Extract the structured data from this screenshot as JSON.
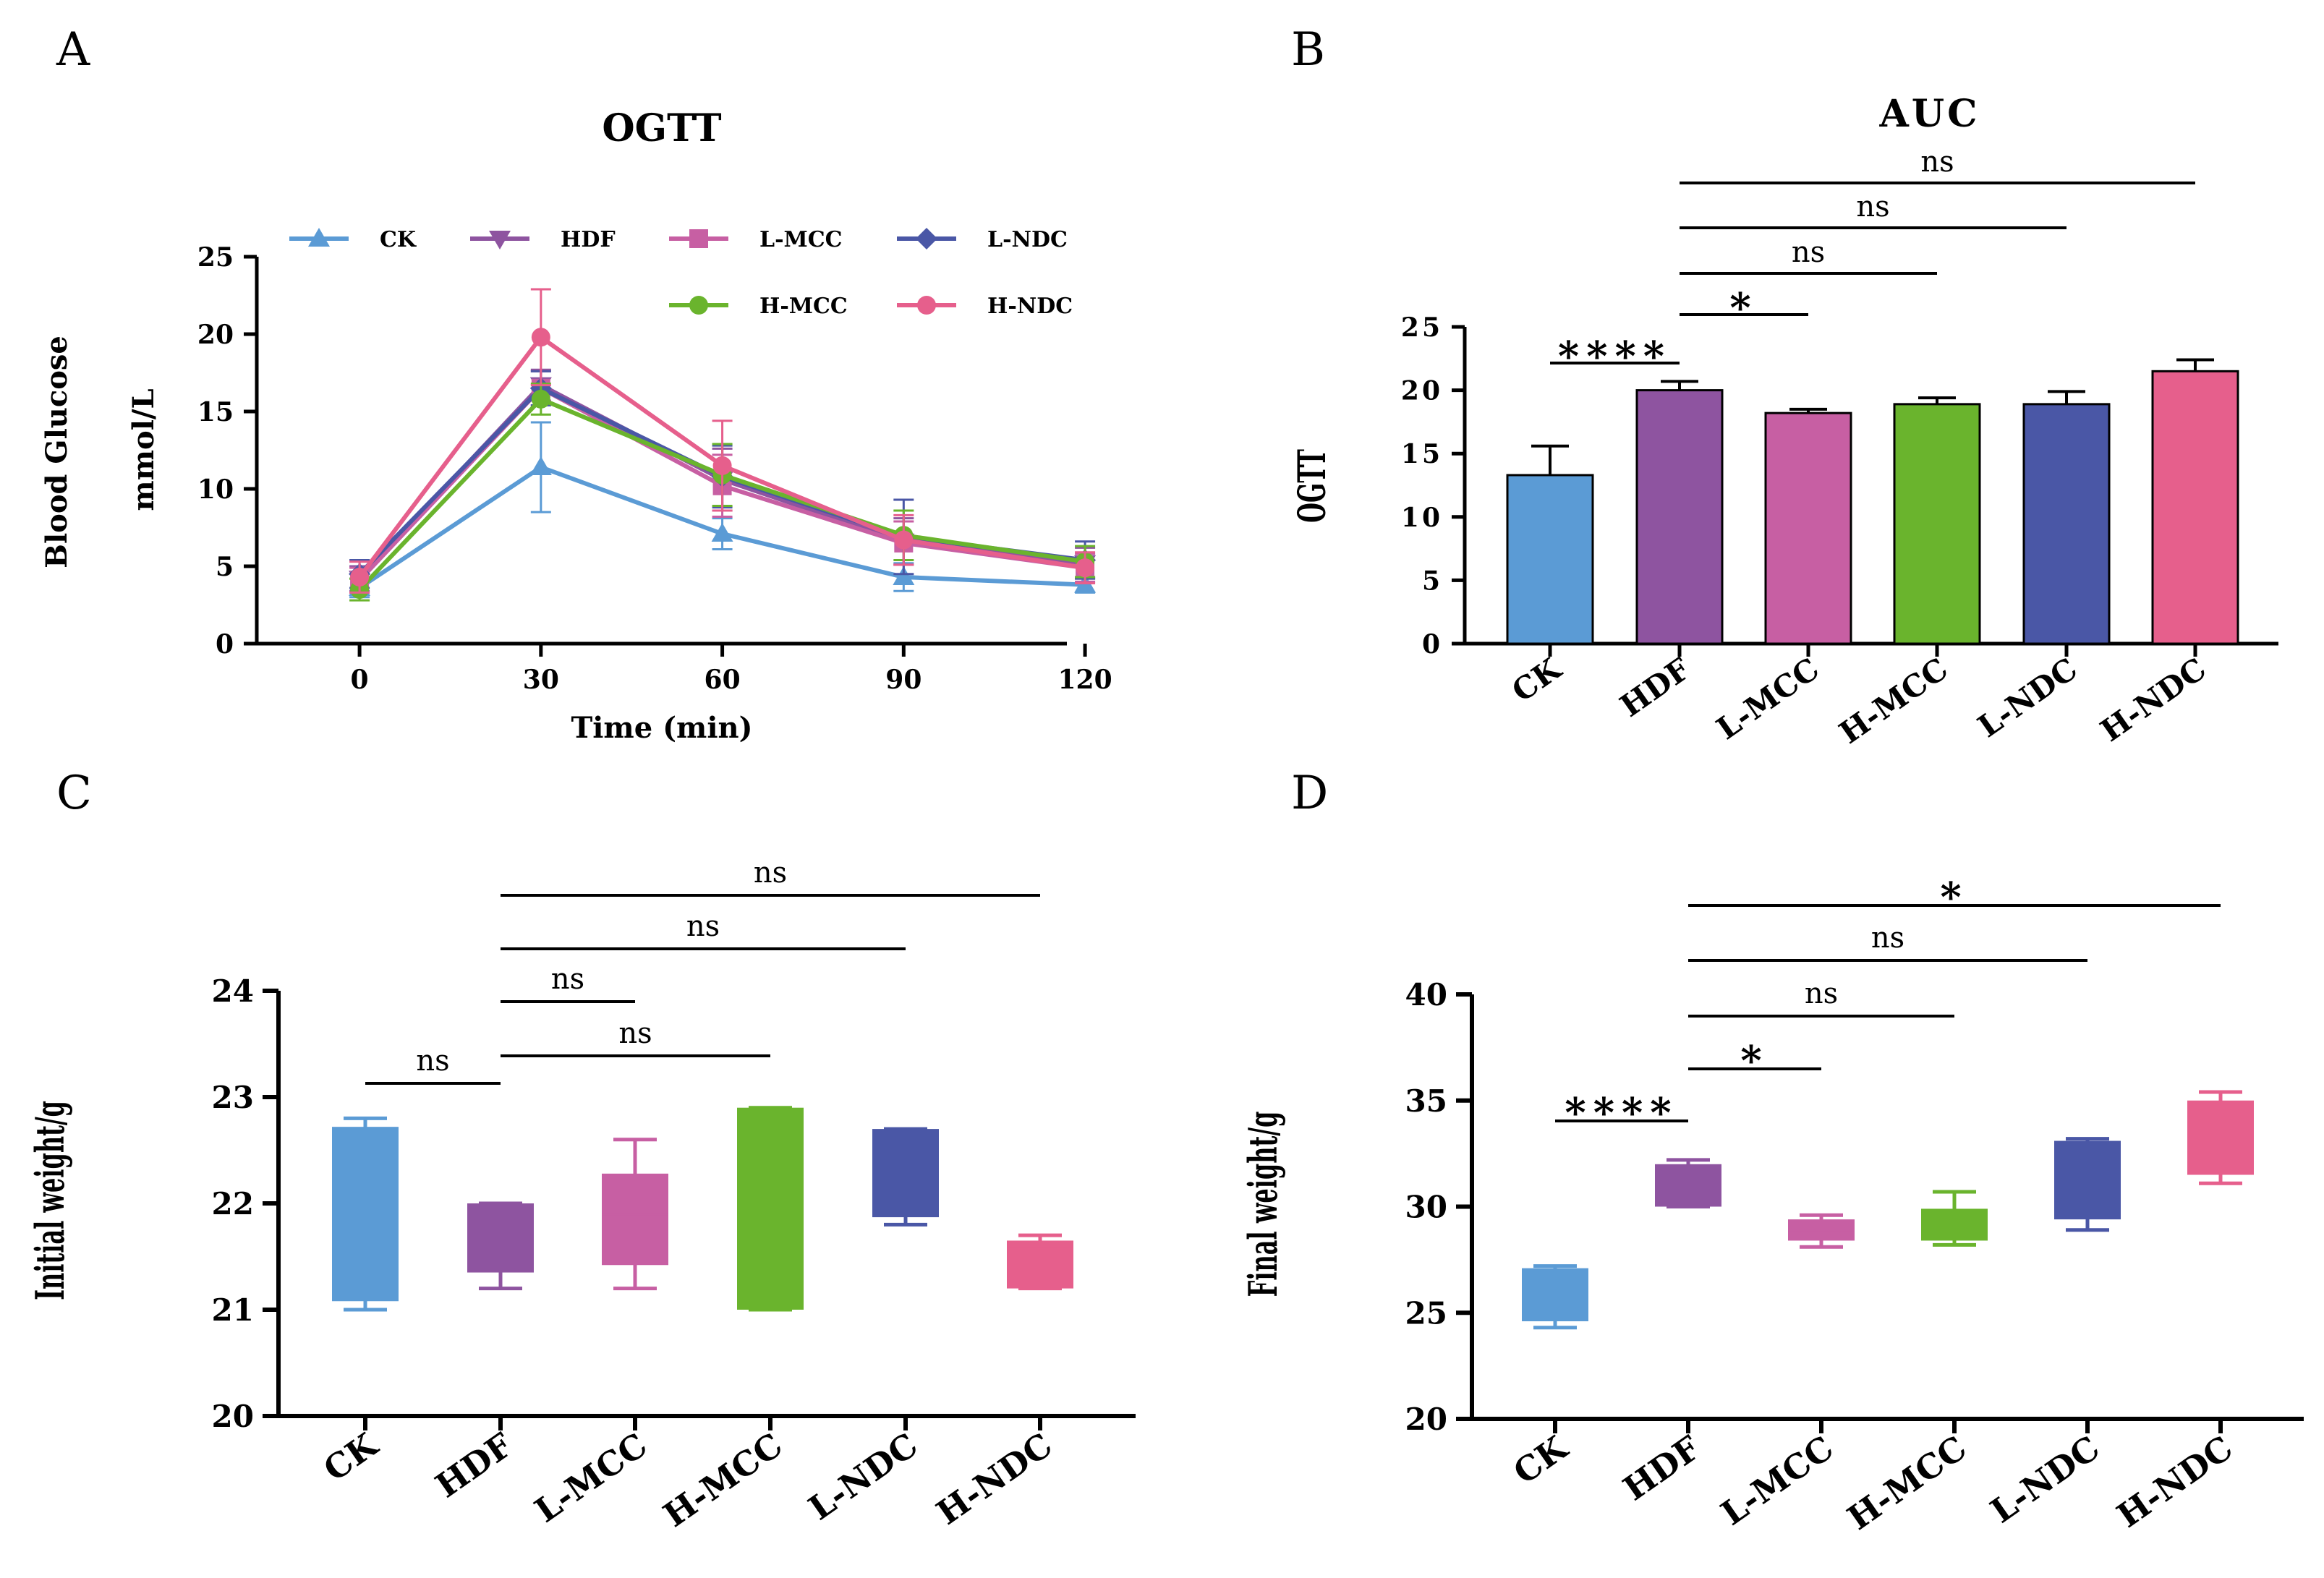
{
  "panels": {
    "A": "A",
    "B": "B",
    "C": "C",
    "D": "D"
  },
  "colors": {
    "CK": "#5b9bd5",
    "HDF": "#8e54a0",
    "L-MCC": "#c75fa3",
    "H-MCC": "#6ab42d",
    "L-NDC": "#4a57a6",
    "H-NDC": "#e65f8c"
  },
  "chart_data": [
    {
      "panel": "A",
      "type": "line",
      "title": "OGTT",
      "xlabel": "Time (min)",
      "ylabel": [
        "Blood Glucose",
        "mmol/L"
      ],
      "x": [
        0,
        30,
        60,
        90,
        120
      ],
      "xticks": [
        "0",
        "30",
        "60",
        "90",
        "120"
      ],
      "xlim": [
        -17,
        117
      ],
      "ylim": [
        0,
        25
      ],
      "yticks": [
        "0",
        "5",
        "10",
        "15",
        "20",
        "25"
      ],
      "legend_position": "top",
      "series": [
        {
          "name": "CK",
          "marker": "triangle-up",
          "values": [
            3.6,
            11.4,
            7.1,
            4.3,
            3.8
          ],
          "err": [
            0.6,
            2.9,
            1.0,
            0.9,
            0.5
          ]
        },
        {
          "name": "HDF",
          "marker": "triangle-down",
          "values": [
            4.2,
            16.7,
            10.6,
            6.6,
            5.2
          ],
          "err": [
            0.8,
            1.0,
            2.0,
            1.5,
            1.0
          ]
        },
        {
          "name": "L-MCC",
          "marker": "square",
          "values": [
            4.1,
            16.5,
            10.2,
            6.5,
            4.9
          ],
          "err": [
            0.8,
            1.1,
            2.0,
            1.4,
            0.9
          ]
        },
        {
          "name": "L-NDC",
          "marker": "diamond",
          "values": [
            4.5,
            16.5,
            10.8,
            6.9,
            5.4
          ],
          "err": [
            0.9,
            1.1,
            2.0,
            2.4,
            1.2
          ]
        },
        {
          "name": "H-MCC",
          "marker": "circle",
          "values": [
            3.5,
            15.8,
            10.9,
            7.0,
            5.3
          ],
          "err": [
            0.7,
            1.0,
            2.0,
            1.6,
            1.0
          ]
        },
        {
          "name": "H-NDC",
          "marker": "circle",
          "values": [
            4.3,
            19.8,
            11.5,
            6.7,
            4.9
          ],
          "err": [
            1.0,
            3.1,
            2.9,
            1.6,
            1.0
          ]
        }
      ]
    },
    {
      "panel": "B",
      "type": "bar",
      "title": "AUC",
      "ylabel": "OGTT",
      "categories": [
        "CK",
        "HDF",
        "L-MCC",
        "H-MCC",
        "L-NDC",
        "H-NDC"
      ],
      "values": [
        13.3,
        20.0,
        18.2,
        18.9,
        18.9,
        21.5
      ],
      "err": [
        2.3,
        0.7,
        0.3,
        0.5,
        1.0,
        0.9
      ],
      "ylim": [
        0,
        25
      ],
      "yticks": [
        "0",
        "5",
        "10",
        "15",
        "20",
        "25"
      ],
      "comparisons": [
        {
          "from": 0,
          "to": 1,
          "label": "****"
        },
        {
          "from": 1,
          "to": 2,
          "label": "*"
        },
        {
          "from": 1,
          "to": 3,
          "label": "ns"
        },
        {
          "from": 1,
          "to": 4,
          "label": "ns"
        },
        {
          "from": 1,
          "to": 5,
          "label": "ns"
        }
      ]
    },
    {
      "panel": "C",
      "type": "box",
      "ylabel": "Initial weight/g",
      "categories": [
        "CK",
        "HDF",
        "L-MCC",
        "H-MCC",
        "L-NDC",
        "H-NDC"
      ],
      "boxes": [
        {
          "min": 21.0,
          "q1": 21.08,
          "median": 22.0,
          "q3": 22.72,
          "max": 22.8
        },
        {
          "min": 21.2,
          "q1": 21.35,
          "median": 21.6,
          "q3": 22.0,
          "max": 22.0
        },
        {
          "min": 21.2,
          "q1": 21.42,
          "median": 21.9,
          "q3": 22.28,
          "max": 22.6
        },
        {
          "min": 21.0,
          "q1": 21.0,
          "median": 22.0,
          "q3": 22.9,
          "max": 22.9
        },
        {
          "min": 21.8,
          "q1": 21.87,
          "median": 22.3,
          "q3": 22.7,
          "max": 22.7
        },
        {
          "min": 21.2,
          "q1": 21.2,
          "median": 21.6,
          "q3": 21.65,
          "max": 21.7
        }
      ],
      "ylim": [
        20,
        24
      ],
      "yticks": [
        "20",
        "21",
        "22",
        "23",
        "24"
      ],
      "comparisons": [
        {
          "from": 0,
          "to": 1,
          "label": "ns"
        },
        {
          "from": 1,
          "to": 3,
          "label": "ns"
        },
        {
          "from": 1,
          "to": 2,
          "label": "ns"
        },
        {
          "from": 1,
          "to": 4,
          "label": "ns"
        },
        {
          "from": 1,
          "to": 5,
          "label": "ns"
        }
      ]
    },
    {
      "panel": "D",
      "type": "box",
      "ylabel": "Final weight/g",
      "categories": [
        "CK",
        "HDF",
        "L-MCC",
        "H-MCC",
        "L-NDC",
        "H-NDC"
      ],
      "boxes": [
        {
          "min": 24.3,
          "q1": 24.6,
          "median": 26.0,
          "q3": 27.1,
          "max": 27.2
        },
        {
          "min": 30.0,
          "q1": 30.0,
          "median": 31.0,
          "q3": 32.0,
          "max": 32.2
        },
        {
          "min": 28.1,
          "q1": 28.4,
          "median": 28.9,
          "q3": 29.4,
          "max": 29.6
        },
        {
          "min": 28.2,
          "q1": 28.4,
          "median": 29.0,
          "q3": 29.9,
          "max": 30.7
        },
        {
          "min": 28.9,
          "q1": 29.4,
          "median": 31.0,
          "q3": 33.1,
          "max": 33.2
        },
        {
          "min": 31.1,
          "q1": 31.5,
          "median": 33.0,
          "q3": 35.0,
          "max": 35.4
        }
      ],
      "ylim": [
        20,
        40
      ],
      "yticks": [
        "20",
        "25",
        "30",
        "35",
        "40"
      ],
      "comparisons": [
        {
          "from": 0,
          "to": 1,
          "label": "****"
        },
        {
          "from": 1,
          "to": 2,
          "label": "*"
        },
        {
          "from": 1,
          "to": 3,
          "label": "ns"
        },
        {
          "from": 1,
          "to": 4,
          "label": "ns"
        },
        {
          "from": 1,
          "to": 5,
          "label": "*"
        }
      ]
    }
  ]
}
